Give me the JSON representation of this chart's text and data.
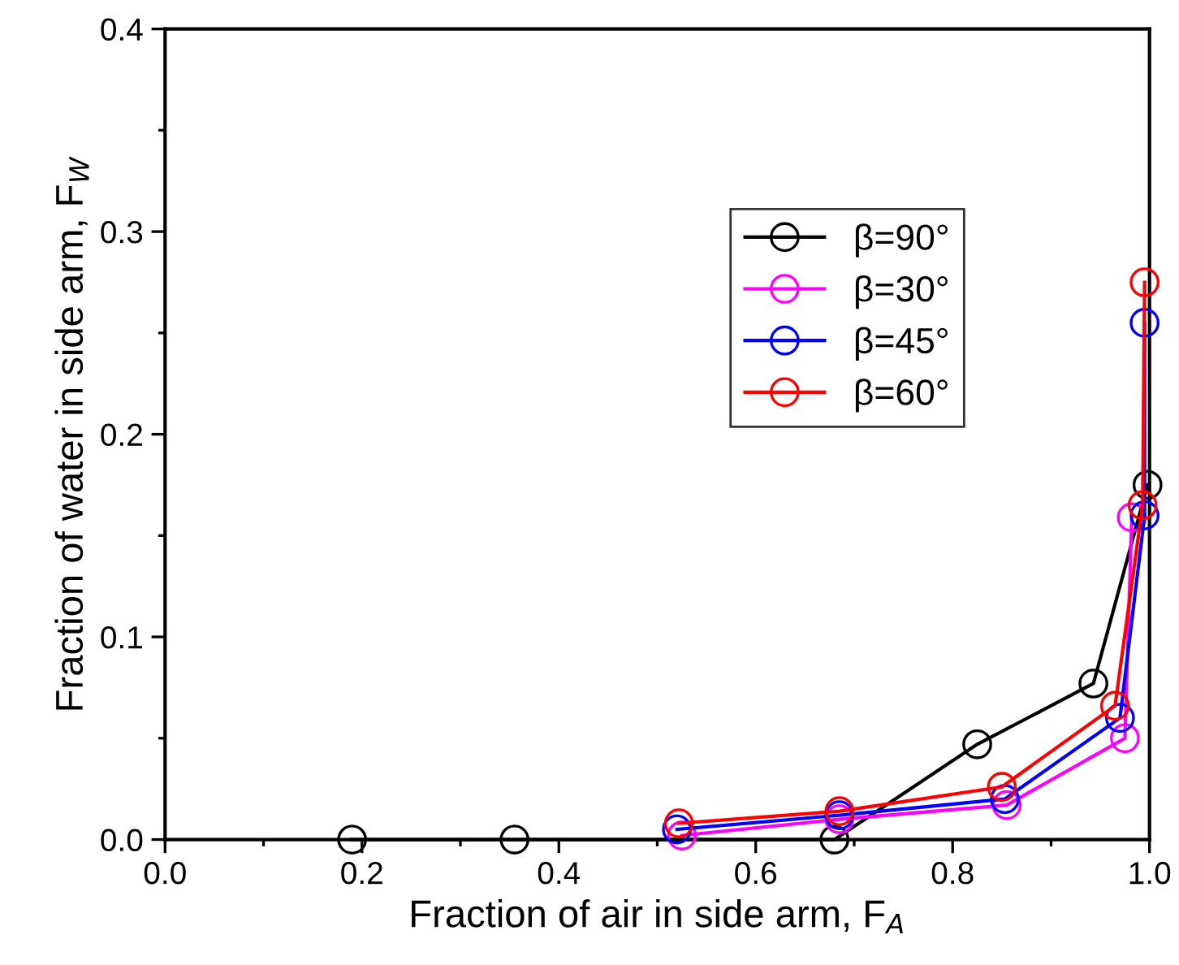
{
  "chart_data": {
    "type": "line",
    "xlabel": "Fraction of air in side arm, F$_{A}$",
    "ylabel": "Fraction of water in side arm, F$_{W}$",
    "xlim": [
      0,
      1
    ],
    "ylim": [
      0,
      0.4
    ],
    "xticks": [
      {
        "value": 0,
        "label": "0.0"
      },
      0.2,
      0.4,
      0.6,
      0.8,
      {
        "value": 1,
        "label": "1.0"
      }
    ],
    "yticks": [
      {
        "value": 0,
        "label": "0.0"
      },
      0.1,
      0.2,
      0.3,
      0.4
    ],
    "marker": "circle",
    "line_style": "solid",
    "grid": false,
    "legend": "top right",
    "series": [
      {
        "name": "β=90°",
        "color": "#000000",
        "x": [
          0.19,
          0.355,
          0.68,
          0.825,
          0.943,
          0.998
        ],
        "values": [
          0,
          0,
          0,
          0.047,
          0.077,
          0.175
        ]
      },
      {
        "name": "β=30°",
        "color": "#ff00ff",
        "x": [
          0.525,
          0.685,
          0.855,
          0.975,
          0.982
        ],
        "values": [
          0.002,
          0.01,
          0.017,
          0.05,
          0.159
        ]
      },
      {
        "name": "β=45°",
        "color": "#0000ff",
        "x": [
          0.52,
          0.685,
          0.853,
          0.97,
          0.995,
          0.995
        ],
        "values": [
          0.005,
          0.012,
          0.02,
          0.06,
          0.16,
          0.255
        ]
      },
      {
        "name": "β=60°",
        "color": "#ff0000",
        "x": [
          0.522,
          0.685,
          0.85,
          0.965,
          0.993,
          0.995
        ],
        "values": [
          0.008,
          0.014,
          0.026,
          0.066,
          0.165,
          0.275
        ]
      }
    ]
  }
}
